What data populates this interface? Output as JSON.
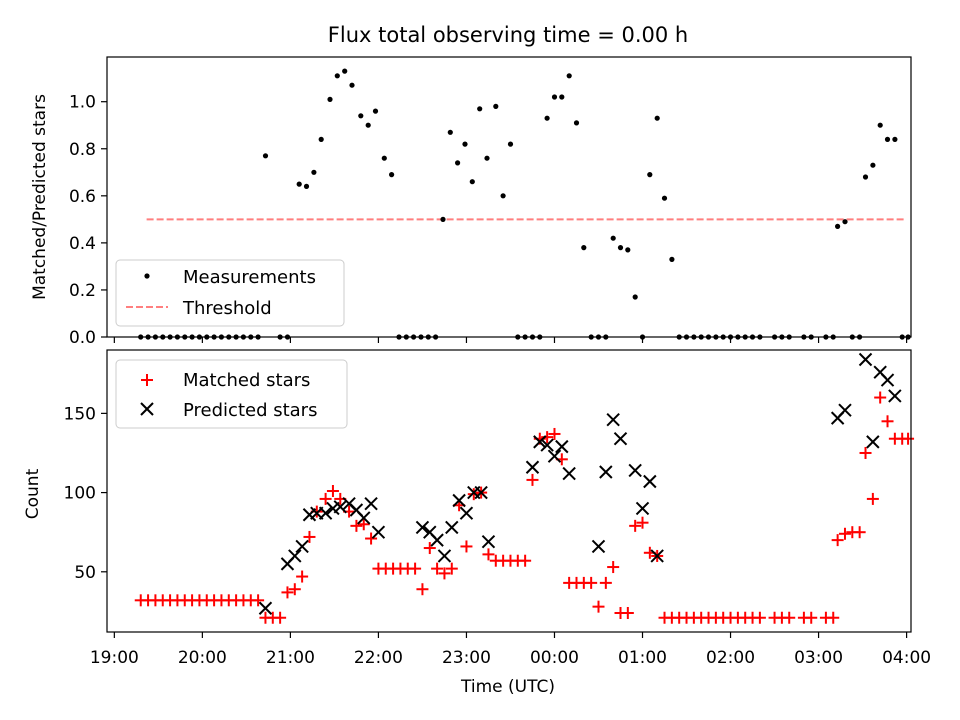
{
  "figure_title": "Flux total observing time = 0.00 h",
  "chart_data": [
    {
      "type": "scatter",
      "panel": "top",
      "title": "Flux total observing time = 0.00 h",
      "xlabel": "",
      "ylabel": "Matched/Predicted stars",
      "ylim": [
        0,
        1.19
      ],
      "yticks": [
        0.0,
        0.2,
        0.4,
        0.6,
        0.8,
        1.0
      ],
      "ytick_labels": [
        "0.0",
        "0.2",
        "0.4",
        "0.6",
        "0.8",
        "1.0"
      ],
      "xlim": [
        "18:55",
        "04:03"
      ],
      "xticks": [
        "19:00",
        "20:00",
        "21:00",
        "22:00",
        "23:00",
        "00:00",
        "01:00",
        "02:00",
        "03:00",
        "04:00"
      ],
      "grid": false,
      "legend": {
        "placement": "lower left",
        "entries": [
          "Measurements",
          "Threshold"
        ]
      },
      "series": [
        {
          "name": "Measurements",
          "marker": "dot",
          "color": "#000000",
          "points": [
            [
              "19:18",
              0
            ],
            [
              "19:23",
              0
            ],
            [
              "19:28",
              0
            ],
            [
              "19:33",
              0
            ],
            [
              "19:38",
              0
            ],
            [
              "19:43",
              0
            ],
            [
              "19:48",
              0
            ],
            [
              "19:53",
              0
            ],
            [
              "19:58",
              0
            ],
            [
              "20:03",
              0
            ],
            [
              "20:08",
              0
            ],
            [
              "20:13",
              0
            ],
            [
              "20:18",
              0
            ],
            [
              "20:23",
              0
            ],
            [
              "20:28",
              0
            ],
            [
              "20:33",
              0
            ],
            [
              "20:38",
              0
            ],
            [
              "20:43",
              0.77
            ],
            [
              "20:53",
              0
            ],
            [
              "20:58",
              0
            ],
            [
              "21:06",
              0.65
            ],
            [
              "21:11",
              0.64
            ],
            [
              "21:16",
              0.7
            ],
            [
              "21:21",
              0.84
            ],
            [
              "21:27",
              1.01
            ],
            [
              "21:32",
              1.11
            ],
            [
              "21:37",
              1.13
            ],
            [
              "21:42",
              1.07
            ],
            [
              "21:48",
              0.94
            ],
            [
              "21:53",
              0.9
            ],
            [
              "21:58",
              0.96
            ],
            [
              "22:04",
              0.76
            ],
            [
              "22:09",
              0.69
            ],
            [
              "22:14",
              0
            ],
            [
              "22:19",
              0
            ],
            [
              "22:24",
              0
            ],
            [
              "22:29",
              0
            ],
            [
              "22:34",
              0
            ],
            [
              "22:39",
              0
            ],
            [
              "22:44",
              0.5
            ],
            [
              "22:49",
              0.87
            ],
            [
              "22:54",
              0.74
            ],
            [
              "22:59",
              0.82
            ],
            [
              "23:04",
              0.66
            ],
            [
              "23:09",
              0.97
            ],
            [
              "23:14",
              0.76
            ],
            [
              "23:20",
              0.98
            ],
            [
              "23:25",
              0.6
            ],
            [
              "23:30",
              0.82
            ],
            [
              "23:35",
              0
            ],
            [
              "23:40",
              0
            ],
            [
              "23:45",
              0
            ],
            [
              "23:50",
              0
            ],
            [
              "23:55",
              0.93
            ],
            [
              "00:00",
              1.02
            ],
            [
              "00:05",
              1.02
            ],
            [
              "00:10",
              1.11
            ],
            [
              "00:15",
              0.91
            ],
            [
              "00:20",
              0.38
            ],
            [
              "00:25",
              0
            ],
            [
              "00:30",
              0
            ],
            [
              "00:35",
              0
            ],
            [
              "00:40",
              0.42
            ],
            [
              "00:45",
              0.38
            ],
            [
              "00:50",
              0.37
            ],
            [
              "00:55",
              0.17
            ],
            [
              "01:00",
              0
            ],
            [
              "01:05",
              0.69
            ],
            [
              "01:10",
              0.93
            ],
            [
              "01:15",
              0.59
            ],
            [
              "01:20",
              0.33
            ],
            [
              "01:25",
              0
            ],
            [
              "01:30",
              0
            ],
            [
              "01:35",
              0
            ],
            [
              "01:40",
              0
            ],
            [
              "01:45",
              0
            ],
            [
              "01:50",
              0
            ],
            [
              "01:55",
              0
            ],
            [
              "02:00",
              0
            ],
            [
              "02:05",
              0
            ],
            [
              "02:10",
              0
            ],
            [
              "02:15",
              0
            ],
            [
              "02:20",
              0
            ],
            [
              "02:30",
              0
            ],
            [
              "02:35",
              0
            ],
            [
              "02:40",
              0
            ],
            [
              "02:50",
              0
            ],
            [
              "02:55",
              0
            ],
            [
              "03:05",
              0
            ],
            [
              "03:10",
              0
            ],
            [
              "03:13",
              0.47
            ],
            [
              "03:18",
              0.49
            ],
            [
              "03:23",
              0
            ],
            [
              "03:28",
              0
            ],
            [
              "03:32",
              0.68
            ],
            [
              "03:37",
              0.73
            ],
            [
              "03:42",
              0.9
            ],
            [
              "03:47",
              0.84
            ],
            [
              "03:52",
              0.84
            ],
            [
              "03:57",
              0
            ],
            [
              "04:01",
              0
            ]
          ]
        },
        {
          "name": "Threshold",
          "style": "dashed",
          "color": "#ff7f7f",
          "points": [
            [
              "19:22",
              0.5
            ],
            [
              "03:59",
              0.5
            ]
          ]
        }
      ]
    },
    {
      "type": "scatter",
      "panel": "bottom",
      "xlabel": "Time (UTC)",
      "ylabel": "Count",
      "ylim": [
        12,
        190
      ],
      "yticks": [
        50,
        100,
        150
      ],
      "ytick_labels": [
        "50",
        "100",
        "150"
      ],
      "xlim": [
        "18:55",
        "04:03"
      ],
      "xticks": [
        "19:00",
        "20:00",
        "21:00",
        "22:00",
        "23:00",
        "00:00",
        "01:00",
        "02:00",
        "03:00",
        "04:00"
      ],
      "xtick_labels": [
        "19:00",
        "20:00",
        "21:00",
        "22:00",
        "23:00",
        "00:00",
        "01:00",
        "02:00",
        "03:00",
        "04:00"
      ],
      "grid": false,
      "legend": {
        "placement": "upper left",
        "entries": [
          "Matched stars",
          "Predicted stars"
        ]
      },
      "series": [
        {
          "name": "Matched stars",
          "marker": "plus",
          "color": "#ff0000",
          "points": [
            [
              "19:18",
              32
            ],
            [
              "19:23",
              32
            ],
            [
              "19:28",
              32
            ],
            [
              "19:33",
              32
            ],
            [
              "19:38",
              32
            ],
            [
              "19:43",
              32
            ],
            [
              "19:48",
              32
            ],
            [
              "19:53",
              32
            ],
            [
              "19:58",
              32
            ],
            [
              "20:03",
              32
            ],
            [
              "20:08",
              32
            ],
            [
              "20:13",
              32
            ],
            [
              "20:18",
              32
            ],
            [
              "20:23",
              32
            ],
            [
              "20:28",
              32
            ],
            [
              "20:33",
              32
            ],
            [
              "20:38",
              32
            ],
            [
              "20:43",
              21
            ],
            [
              "20:48",
              21
            ],
            [
              "20:53",
              21
            ],
            [
              "20:58",
              37
            ],
            [
              "21:03",
              39
            ],
            [
              "21:08",
              47
            ],
            [
              "21:13",
              72
            ],
            [
              "21:18",
              88
            ],
            [
              "21:24",
              96
            ],
            [
              "21:29",
              101
            ],
            [
              "21:34",
              96
            ],
            [
              "21:40",
              88
            ],
            [
              "21:45",
              79
            ],
            [
              "21:50",
              80
            ],
            [
              "21:55",
              71
            ],
            [
              "22:00",
              52
            ],
            [
              "22:05",
              52
            ],
            [
              "22:10",
              52
            ],
            [
              "22:15",
              52
            ],
            [
              "22:20",
              52
            ],
            [
              "22:25",
              52
            ],
            [
              "22:30",
              39
            ],
            [
              "22:35",
              65
            ],
            [
              "22:40",
              52
            ],
            [
              "22:45",
              49
            ],
            [
              "22:50",
              52
            ],
            [
              "22:55",
              92
            ],
            [
              "23:00",
              66
            ],
            [
              "23:05",
              99
            ],
            [
              "23:10",
              100
            ],
            [
              "23:15",
              61
            ],
            [
              "23:20",
              57
            ],
            [
              "23:25",
              57
            ],
            [
              "23:30",
              57
            ],
            [
              "23:35",
              57
            ],
            [
              "23:40",
              57
            ],
            [
              "23:45",
              108
            ],
            [
              "23:50",
              134
            ],
            [
              "23:55",
              135
            ],
            [
              "00:00",
              137
            ],
            [
              "00:05",
              121
            ],
            [
              "00:10",
              43
            ],
            [
              "00:15",
              43
            ],
            [
              "00:20",
              43
            ],
            [
              "00:25",
              43
            ],
            [
              "00:30",
              28
            ],
            [
              "00:35",
              43
            ],
            [
              "00:40",
              53
            ],
            [
              "00:45",
              24
            ],
            [
              "00:50",
              24
            ],
            [
              "00:55",
              79
            ],
            [
              "01:00",
              81
            ],
            [
              "01:05",
              62
            ],
            [
              "01:10",
              60
            ],
            [
              "01:15",
              21
            ],
            [
              "01:20",
              21
            ],
            [
              "01:25",
              21
            ],
            [
              "01:30",
              21
            ],
            [
              "01:35",
              21
            ],
            [
              "01:40",
              21
            ],
            [
              "01:45",
              21
            ],
            [
              "01:50",
              21
            ],
            [
              "01:55",
              21
            ],
            [
              "02:00",
              21
            ],
            [
              "02:05",
              21
            ],
            [
              "02:10",
              21
            ],
            [
              "02:15",
              21
            ],
            [
              "02:20",
              21
            ],
            [
              "02:30",
              21
            ],
            [
              "02:35",
              21
            ],
            [
              "02:40",
              21
            ],
            [
              "02:50",
              21
            ],
            [
              "02:55",
              21
            ],
            [
              "03:05",
              21
            ],
            [
              "03:10",
              21
            ],
            [
              "03:13",
              70
            ],
            [
              "03:18",
              74
            ],
            [
              "03:23",
              75
            ],
            [
              "03:28",
              75
            ],
            [
              "03:32",
              125
            ],
            [
              "03:37",
              96
            ],
            [
              "03:42",
              160
            ],
            [
              "03:47",
              145
            ],
            [
              "03:52",
              134
            ],
            [
              "03:57",
              134
            ],
            [
              "04:01",
              134
            ]
          ]
        },
        {
          "name": "Predicted stars",
          "marker": "x",
          "color": "#000000",
          "points": [
            [
              "20:43",
              27
            ],
            [
              "20:58",
              55
            ],
            [
              "21:03",
              60
            ],
            [
              "21:08",
              66
            ],
            [
              "21:13",
              86
            ],
            [
              "21:18",
              87
            ],
            [
              "21:24",
              87
            ],
            [
              "21:29",
              90
            ],
            [
              "21:34",
              91
            ],
            [
              "21:40",
              93
            ],
            [
              "21:45",
              89
            ],
            [
              "21:50",
              84
            ],
            [
              "21:55",
              93
            ],
            [
              "22:00",
              75
            ],
            [
              "22:30",
              78
            ],
            [
              "22:35",
              75
            ],
            [
              "22:40",
              70
            ],
            [
              "22:45",
              60
            ],
            [
              "22:50",
              78
            ],
            [
              "22:55",
              95
            ],
            [
              "23:00",
              87
            ],
            [
              "23:05",
              100
            ],
            [
              "23:10",
              100
            ],
            [
              "23:15",
              69
            ],
            [
              "23:45",
              116
            ],
            [
              "23:50",
              132
            ],
            [
              "23:55",
              130
            ],
            [
              "00:00",
              123
            ],
            [
              "00:05",
              129
            ],
            [
              "00:10",
              112
            ],
            [
              "00:30",
              66
            ],
            [
              "00:35",
              113
            ],
            [
              "00:40",
              146
            ],
            [
              "00:45",
              134
            ],
            [
              "00:55",
              114
            ],
            [
              "01:00",
              90
            ],
            [
              "01:05",
              107
            ],
            [
              "01:10",
              60
            ],
            [
              "03:13",
              147
            ],
            [
              "03:18",
              152
            ],
            [
              "03:32",
              184
            ],
            [
              "03:37",
              132
            ],
            [
              "03:42",
              176
            ],
            [
              "03:47",
              171
            ],
            [
              "03:52",
              161
            ]
          ]
        }
      ]
    }
  ]
}
